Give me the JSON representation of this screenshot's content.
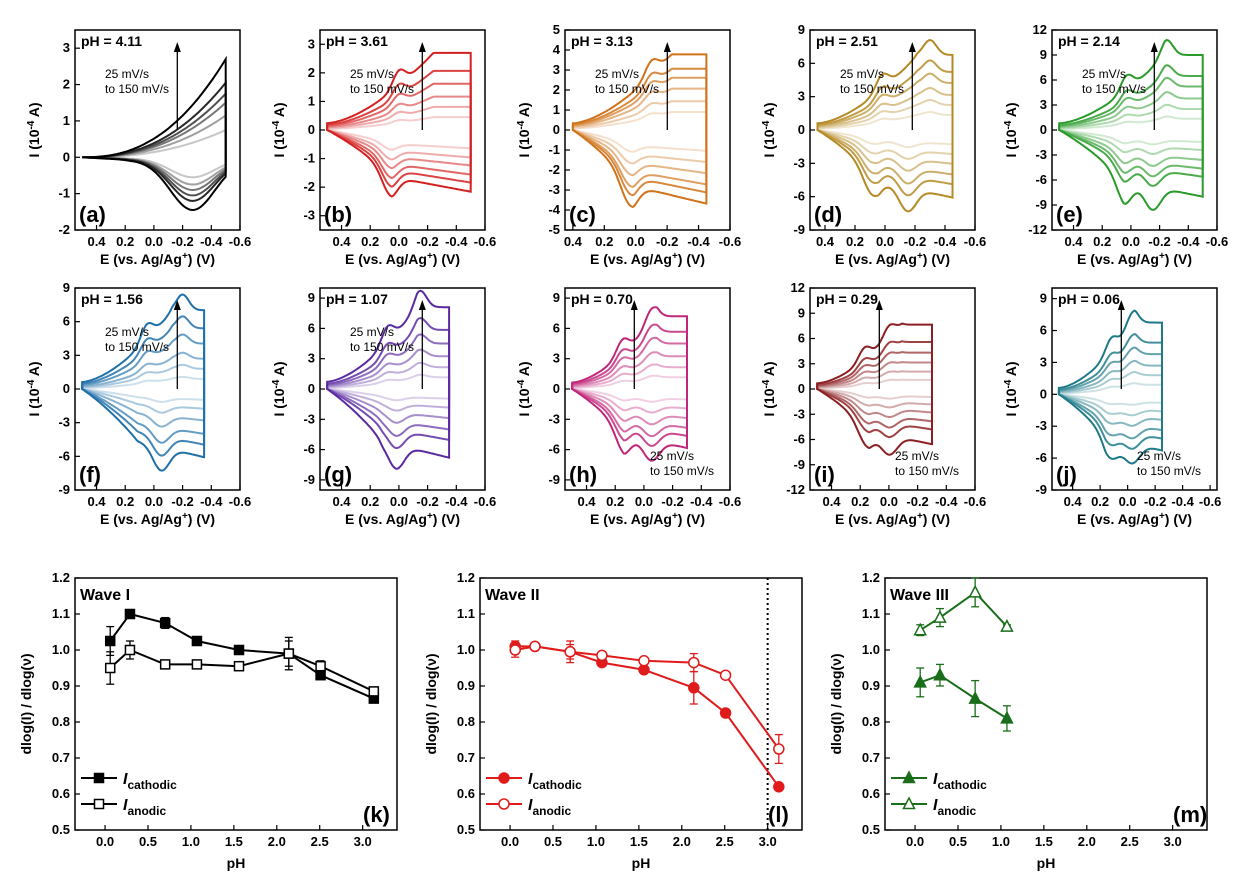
{
  "chart_data": [
    {
      "type": "line",
      "panel_label": "(a)",
      "ph_label": "pH = 4.11",
      "color": "#000000",
      "xlabel": "E (vs. Ag/Ag+) (V)",
      "ylabel": "I (10-4 A)",
      "xticks": [
        "0.4",
        "0.2",
        "0.0",
        "-0.2",
        "-0.4",
        "-0.6"
      ],
      "yticks": [
        "-2",
        "-1",
        "0",
        "1",
        "2",
        "3"
      ],
      "note_line1": "25 mV/s",
      "note_line2": "to 150 mV/s",
      "note_pos": "top",
      "xlim": [
        0.55,
        -0.6
      ],
      "ylim": [
        -2,
        3.5
      ],
      "shape": "tail",
      "peaks_a": [],
      "peaks_c": [],
      "vmin": 0.5,
      "vmax": -0.5,
      "amp_a": [
        0.75,
        1.15,
        1.5,
        1.75,
        2.05,
        2.7
      ],
      "amp_c": [
        0.55,
        0.75,
        0.9,
        1.05,
        1.2,
        1.45
      ]
    },
    {
      "type": "line",
      "panel_label": "(b)",
      "ph_label": "pH = 3.61",
      "color": "#d42020",
      "xlabel": "E (vs. Ag/Ag+) (V)",
      "ylabel": "I (10-4 A)",
      "xticks": [
        "0.4",
        "0.2",
        "0.0",
        "-0.2",
        "-0.4",
        "-0.6"
      ],
      "yticks": [
        "-3",
        "-2",
        "-1",
        "0",
        "1",
        "2",
        "3"
      ],
      "note_line1": "25 mV/s",
      "note_line2": "to 150 mV/s",
      "note_pos": "top",
      "xlim": [
        0.55,
        -0.6
      ],
      "ylim": [
        -3.5,
        3.5
      ],
      "shape": "box",
      "peaks_a": [
        0.0
      ],
      "peaks_c": [
        0.07
      ],
      "vmin": 0.5,
      "vmax": -0.5,
      "amp_a": [
        0.5,
        0.9,
        1.3,
        1.8,
        2.3,
        3.0
      ],
      "amp_c": [
        0.8,
        1.2,
        1.55,
        1.95,
        2.3,
        2.7
      ]
    },
    {
      "type": "line",
      "panel_label": "(c)",
      "ph_label": "pH = 3.13",
      "color": "#d0731a",
      "xlabel": "E (vs. Ag/Ag+) (V)",
      "ylabel": "I (10-4 A)",
      "xticks": [
        "0.4",
        "0.2",
        "0.0",
        "-0.2",
        "-0.4",
        "-0.6"
      ],
      "yticks": [
        "-5",
        "-4",
        "-3",
        "-2",
        "-1",
        "0",
        "1",
        "2",
        "3",
        "4",
        "5"
      ],
      "note_line1": "25 mV/s",
      "note_line2": "to 150 mV/s",
      "note_pos": "top",
      "xlim": [
        0.45,
        -0.6
      ],
      "ylim": [
        -5,
        5
      ],
      "shape": "box",
      "peaks_a": [
        -0.1
      ],
      "peaks_c": [
        0.05
      ],
      "vmin": 0.4,
      "vmax": -0.45,
      "amp_a": [
        1.0,
        1.6,
        2.3,
        2.9,
        3.4,
        4.2
      ],
      "amp_c": [
        1.3,
        2.0,
        2.7,
        3.4,
        3.9,
        4.6
      ]
    },
    {
      "type": "line",
      "panel_label": "(d)",
      "ph_label": "pH = 2.51",
      "color": "#b58a25",
      "xlabel": "E (vs. Ag/Ag+) (V)",
      "ylabel": "I (10-4 A)",
      "xticks": [
        "0.4",
        "0.2",
        "0.0",
        "-0.2",
        "-0.4",
        "-0.6"
      ],
      "yticks": [
        "-9",
        "-6",
        "-3",
        "0",
        "3",
        "6",
        "9"
      ],
      "note_line1": "25 mV/s",
      "note_line2": "to 150 mV/s",
      "note_pos": "top",
      "xlim": [
        0.5,
        -0.6
      ],
      "ylim": [
        -9,
        9
      ],
      "shape": "box",
      "peaks_a": [
        0.02,
        -0.3
      ],
      "peaks_c": [
        0.1,
        -0.15
      ],
      "vmin": 0.45,
      "vmax": -0.45,
      "amp_a": [
        1.5,
        2.5,
        3.5,
        4.7,
        5.8,
        7.5
      ],
      "amp_c": [
        1.6,
        2.7,
        3.8,
        5.0,
        6.1,
        7.6
      ]
    },
    {
      "type": "line",
      "panel_label": "(e)",
      "ph_label": "pH = 2.14",
      "color": "#2a9a2a",
      "xlabel": "E (vs. Ag/Ag+) (V)",
      "ylabel": "I (10-4 A)",
      "xticks": [
        "0.4",
        "0.2",
        "0.0",
        "-0.2",
        "-0.4",
        "-0.6"
      ],
      "yticks": [
        "-12",
        "-9",
        "-6",
        "-3",
        "0",
        "3",
        "6",
        "9",
        "12"
      ],
      "note_line1": "25 mV/s",
      "note_line2": "to 150 mV/s",
      "note_pos": "top",
      "xlim": [
        0.55,
        -0.6
      ],
      "ylim": [
        -12,
        12
      ],
      "shape": "box",
      "peaks_a": [
        0.03,
        -0.25
      ],
      "peaks_c": [
        0.05,
        -0.15
      ],
      "vmin": 0.5,
      "vmax": -0.5,
      "amp_a": [
        1.5,
        2.8,
        4.2,
        5.8,
        7.2,
        10.0
      ],
      "amp_c": [
        1.8,
        3.0,
        4.5,
        5.8,
        7.0,
        10.0
      ]
    },
    {
      "type": "line",
      "panel_label": "(f)",
      "ph_label": "pH = 1.56",
      "color": "#1f6fa8",
      "xlabel": "E (vs. Ag/Ag+) (V)",
      "ylabel": "I (10-4 A)",
      "xticks": [
        "0.4",
        "0.2",
        "0.0",
        "-0.2",
        "-0.4",
        "-0.6"
      ],
      "yticks": [
        "-9",
        "-6",
        "-3",
        "0",
        "3",
        "6",
        "9"
      ],
      "note_line1": "25 mV/s",
      "note_line2": "to 150 mV/s",
      "note_pos": "top",
      "xlim": [
        0.55,
        -0.6
      ],
      "ylim": [
        -9,
        9
      ],
      "shape": "box",
      "peaks_a": [
        0.05,
        -0.2
      ],
      "peaks_c": [
        -0.05
      ],
      "vmin": 0.5,
      "vmax": -0.35,
      "amp_a": [
        1.0,
        2.0,
        3.0,
        4.5,
        6.0,
        7.8
      ],
      "amp_c": [
        1.2,
        2.2,
        3.5,
        5.0,
        6.2,
        7.6
      ]
    },
    {
      "type": "line",
      "panel_label": "(g)",
      "ph_label": "pH = 1.07",
      "color": "#5a2aa0",
      "xlabel": "E (vs. Ag/Ag+) (V)",
      "ylabel": "I (10-4 A)",
      "xticks": [
        "0.4",
        "0.2",
        "0.0",
        "-0.2",
        "-0.4",
        "-0.6"
      ],
      "yticks": [
        "-9",
        "-6",
        "-3",
        "0",
        "3",
        "6",
        "9"
      ],
      "note_line1": "25 mV/s",
      "note_line2": "to 150 mV/s",
      "note_pos": "top",
      "xlim": [
        0.55,
        -0.6
      ],
      "ylim": [
        -10,
        10
      ],
      "shape": "box",
      "peaks_a": [
        0.08,
        -0.15
      ],
      "peaks_c": [
        0.02
      ],
      "vmin": 0.5,
      "vmax": -0.35,
      "amp_a": [
        1.3,
        2.4,
        3.6,
        5.0,
        6.5,
        9.0
      ],
      "amp_c": [
        1.2,
        2.3,
        3.6,
        5.0,
        6.3,
        8.5
      ]
    },
    {
      "type": "line",
      "panel_label": "(h)",
      "ph_label": "pH = 0.70",
      "color": "#c0267a",
      "xlabel": "E (vs. Ag/Ag+) (V)",
      "ylabel": "I (10-4 A)",
      "xticks": [
        "0.4",
        "0.2",
        "0.0",
        "-0.2",
        "-0.4",
        "-0.6"
      ],
      "yticks": [
        "-9",
        "-6",
        "-3",
        "0",
        "3",
        "6",
        "9"
      ],
      "note_line1": "25 mV/s",
      "note_line2": "to 150 mV/s",
      "note_pos": "bottom",
      "xlim": [
        0.55,
        -0.6
      ],
      "ylim": [
        -10,
        10
      ],
      "shape": "box",
      "peaks_a": [
        0.15,
        -0.05
      ],
      "peaks_c": [
        0.15,
        -0.05
      ],
      "vmin": 0.5,
      "vmax": -0.3,
      "amp_a": [
        1.3,
        2.4,
        3.6,
        5.0,
        6.3,
        8.0
      ],
      "amp_c": [
        1.3,
        2.4,
        3.6,
        4.8,
        5.8,
        7.3
      ]
    },
    {
      "type": "line",
      "panel_label": "(i)",
      "ph_label": "pH = 0.29",
      "color": "#8c1f22",
      "xlabel": "E (vs. Ag/Ag+) (V)",
      "ylabel": "I (10-4 A)",
      "xticks": [
        "0.4",
        "0.2",
        "0.0",
        "-0.2",
        "-0.4",
        "-0.6"
      ],
      "yticks": [
        "-12",
        "-9",
        "-6",
        "-3",
        "0",
        "3",
        "6",
        "9",
        "12"
      ],
      "note_line1": "25 mV/s",
      "note_line2": "to 150 mV/s",
      "note_pos": "bottom",
      "xlim": [
        0.55,
        -0.6
      ],
      "ylim": [
        -12,
        12
      ],
      "shape": "box",
      "peaks_a": [
        0.17,
        0.0
      ],
      "peaks_c": [
        0.17,
        0.0
      ],
      "vmin": 0.5,
      "vmax": -0.3,
      "amp_a": [
        1.2,
        2.3,
        3.5,
        4.8,
        6.2,
        8.5
      ],
      "amp_c": [
        1.2,
        2.3,
        3.5,
        4.8,
        6.0,
        8.2
      ]
    },
    {
      "type": "line",
      "panel_label": "(j)",
      "ph_label": "pH = 0.06",
      "color": "#1e7a88",
      "xlabel": "E (vs. Ag/Ag+) (V)",
      "ylabel": "I (10-4 A)",
      "xticks": [
        "0.4",
        "0.2",
        "0.0",
        "-0.2",
        "-0.4",
        "-0.6"
      ],
      "yticks": [
        "-9",
        "-6",
        "-3",
        "0",
        "3",
        "6",
        "9"
      ],
      "note_line1": "25 mV/s",
      "note_line2": "to 150 mV/s",
      "note_pos": "bottom",
      "xlim": [
        0.55,
        -0.65
      ],
      "ylim": [
        -9,
        10
      ],
      "shape": "box",
      "peaks_a": [
        0.12,
        -0.03
      ],
      "peaks_c": [
        0.12,
        -0.03
      ],
      "vmin": 0.5,
      "vmax": -0.25,
      "amp_a": [
        1.0,
        2.0,
        3.0,
        4.2,
        5.4,
        7.5
      ],
      "amp_c": [
        1.0,
        2.0,
        3.0,
        4.2,
        5.2,
        6.6
      ]
    },
    {
      "type": "line",
      "panel_label": "(k)",
      "wave_label": "Wave I",
      "color": "#000000",
      "marker": "square",
      "xlabel": "pH",
      "ylabel": "dlog(I) / dlog(ν)",
      "xticks": [
        "0.0",
        "0.5",
        "1.0",
        "1.5",
        "2.0",
        "2.5",
        "3.0"
      ],
      "yticks": [
        "0.5",
        "0.6",
        "0.7",
        "0.8",
        "0.9",
        "1.0",
        "1.1",
        "1.2"
      ],
      "xlim": [
        -0.35,
        3.4
      ],
      "ylim": [
        0.5,
        1.2
      ],
      "vline": null,
      "legend": [
        {
          "main": "I",
          "sub": "cathodic"
        },
        {
          "main": "I",
          "sub": "anodic"
        }
      ],
      "series": [
        {
          "x": [
            0.06,
            0.29,
            0.7,
            1.07,
            1.56,
            2.14,
            2.51,
            3.13
          ],
          "y": [
            1.025,
            1.1,
            1.075,
            1.025,
            1.0,
            0.99,
            0.93,
            0.865
          ],
          "err": [
            0.04,
            0.012,
            0.015,
            0.005,
            0.005,
            0.045,
            0.01,
            0.01
          ],
          "filled": true
        },
        {
          "x": [
            0.06,
            0.29,
            0.7,
            1.07,
            1.56,
            2.14,
            2.51,
            3.13
          ],
          "y": [
            0.95,
            1.0,
            0.96,
            0.96,
            0.955,
            0.99,
            0.955,
            0.885
          ],
          "err": [
            0.045,
            0.025,
            0.01,
            0.005,
            0.01,
            0.035,
            0.015,
            0.012
          ],
          "filled": false
        }
      ]
    },
    {
      "type": "line",
      "panel_label": "(l)",
      "wave_label": "Wave II",
      "color": "#e01b1b",
      "marker": "circle",
      "xlabel": "pH",
      "ylabel": "dlog(I) / dlog(ν)",
      "xticks": [
        "0.0",
        "0.5",
        "1.0",
        "1.5",
        "2.0",
        "2.5",
        "3.0"
      ],
      "yticks": [
        "0.5",
        "0.6",
        "0.7",
        "0.8",
        "0.9",
        "1.0",
        "1.1",
        "1.2"
      ],
      "xlim": [
        -0.35,
        3.4
      ],
      "ylim": [
        0.5,
        1.2
      ],
      "vline": 3.0,
      "legend": [
        {
          "main": "I",
          "sub": "cathodic"
        },
        {
          "main": "I",
          "sub": "anodic"
        }
      ],
      "series": [
        {
          "x": [
            0.06,
            0.29,
            0.7,
            1.07,
            1.56,
            2.14,
            2.51,
            3.13
          ],
          "y": [
            1.01,
            1.01,
            0.995,
            0.965,
            0.945,
            0.895,
            0.825,
            0.62
          ],
          "err": [
            0.015,
            0.01,
            0.03,
            0.01,
            0.005,
            0.045,
            0.005,
            0.005
          ],
          "filled": true
        },
        {
          "x": [
            0.06,
            0.29,
            0.7,
            1.07,
            1.56,
            2.14,
            2.51,
            3.13
          ],
          "y": [
            1.0,
            1.01,
            0.995,
            0.985,
            0.97,
            0.965,
            0.93,
            0.725
          ],
          "err": [
            0.02,
            0.01,
            0.02,
            0.01,
            0.005,
            0.025,
            0.01,
            0.04
          ],
          "filled": false
        }
      ]
    },
    {
      "type": "line",
      "panel_label": "(m)",
      "wave_label": "Wave III",
      "color": "#1a6e1a",
      "marker": "triangle",
      "xlabel": "pH",
      "ylabel": "dlog(I) / dlog(ν)",
      "xticks": [
        "0.0",
        "0.5",
        "1.0",
        "1.5",
        "2.0",
        "2.5",
        "3.0"
      ],
      "yticks": [
        "0.5",
        "0.6",
        "0.7",
        "0.8",
        "0.9",
        "1.0",
        "1.1",
        "1.2"
      ],
      "xlim": [
        -0.35,
        3.4
      ],
      "ylim": [
        0.5,
        1.2
      ],
      "vline": null,
      "legend": [
        {
          "main": "I",
          "sub": "cathodic"
        },
        {
          "main": "I",
          "sub": "anodic"
        }
      ],
      "series": [
        {
          "x": [
            0.06,
            0.29,
            0.7,
            1.07
          ],
          "y": [
            0.91,
            0.93,
            0.865,
            0.81
          ],
          "err": [
            0.04,
            0.03,
            0.05,
            0.035
          ],
          "filled": true
        },
        {
          "x": [
            0.06,
            0.29,
            0.7,
            1.07
          ],
          "y": [
            1.055,
            1.09,
            1.16,
            1.065
          ],
          "err": [
            0.015,
            0.025,
            0.04,
            0.005
          ],
          "filled": false
        }
      ]
    }
  ]
}
